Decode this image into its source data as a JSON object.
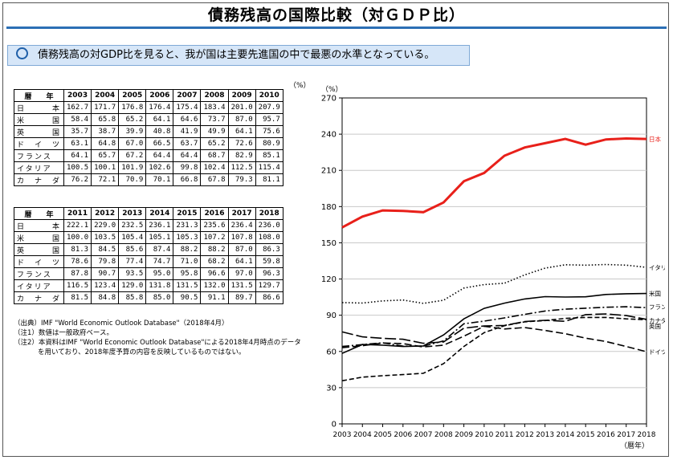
{
  "title": "債務残高の国際比較（対ＧＤＰ比）",
  "banner": "債務残高の対GDP比を見ると、我が国は主要先進国の中で最悪の水準となっている。",
  "table_unit": "（%）",
  "table_header_label": "暦　　年",
  "table1": {
    "years": [
      "2003",
      "2004",
      "2005",
      "2006",
      "2007",
      "2008",
      "2009",
      "2010"
    ],
    "rows": [
      {
        "country": "日　　　本",
        "values": [
          "162.7",
          "171.7",
          "176.8",
          "176.4",
          "175.4",
          "183.4",
          "201.0",
          "207.9"
        ]
      },
      {
        "country": "米　　　国",
        "values": [
          "58.4",
          "65.8",
          "65.2",
          "64.1",
          "64.6",
          "73.7",
          "87.0",
          "95.7"
        ]
      },
      {
        "country": "英　　　国",
        "values": [
          "35.7",
          "38.7",
          "39.9",
          "40.8",
          "41.9",
          "49.9",
          "64.1",
          "75.6"
        ]
      },
      {
        "country": "ド　イ　ツ",
        "values": [
          "63.1",
          "64.8",
          "67.0",
          "66.5",
          "63.7",
          "65.2",
          "72.6",
          "80.9"
        ]
      },
      {
        "country": "フランス",
        "values": [
          "64.1",
          "65.7",
          "67.2",
          "64.4",
          "64.4",
          "68.7",
          "82.9",
          "85.1"
        ]
      },
      {
        "country": "イタリア",
        "values": [
          "100.5",
          "100.1",
          "101.9",
          "102.6",
          "99.8",
          "102.4",
          "112.5",
          "115.4"
        ]
      },
      {
        "country": "カ　ナ　ダ",
        "values": [
          "76.2",
          "72.1",
          "70.9",
          "70.1",
          "66.8",
          "67.8",
          "79.3",
          "81.1"
        ]
      }
    ]
  },
  "table2": {
    "years": [
      "2011",
      "2012",
      "2013",
      "2014",
      "2015",
      "2016",
      "2017",
      "2018"
    ],
    "rows": [
      {
        "country": "日　　　本",
        "values": [
          "222.1",
          "229.0",
          "232.5",
          "236.1",
          "231.3",
          "235.6",
          "236.4",
          "236.0"
        ]
      },
      {
        "country": "米　　　国",
        "values": [
          "100.0",
          "103.5",
          "105.4",
          "105.1",
          "105.3",
          "107.2",
          "107.8",
          "108.0"
        ]
      },
      {
        "country": "英　　　国",
        "values": [
          "81.3",
          "84.5",
          "85.6",
          "87.4",
          "88.2",
          "88.2",
          "87.0",
          "86.3"
        ]
      },
      {
        "country": "ド　イ　ツ",
        "values": [
          "78.6",
          "79.8",
          "77.4",
          "74.7",
          "71.0",
          "68.2",
          "64.1",
          "59.8"
        ]
      },
      {
        "country": "フランス",
        "values": [
          "87.8",
          "90.7",
          "93.5",
          "95.0",
          "95.8",
          "96.6",
          "97.0",
          "96.3"
        ]
      },
      {
        "country": "イタリア",
        "values": [
          "116.5",
          "123.4",
          "129.0",
          "131.8",
          "131.5",
          "132.0",
          "131.5",
          "129.7"
        ]
      },
      {
        "country": "カ　ナ　ダ",
        "values": [
          "81.5",
          "84.8",
          "85.8",
          "85.0",
          "90.5",
          "91.1",
          "89.7",
          "86.6"
        ]
      }
    ]
  },
  "notes": {
    "source": "（出典）IMF \"World Economic Outlook Database\"（2018年4月）",
    "note1": "（注1）数値は一般政府ベース。",
    "note2a": "（注2）本資料はIMF \"World Economic Outlook Database\"による2018年4月時点のデータ",
    "note2b": "を用いており、2018年度予算の内容を反映しているものではない。"
  },
  "chart_data": {
    "type": "line",
    "yunit": "（%）",
    "xlabel": "（暦年）",
    "ylim": [
      0,
      270
    ],
    "yticks": [
      0,
      30,
      60,
      90,
      120,
      150,
      180,
      210,
      240,
      270
    ],
    "grid": true,
    "x": [
      "2003",
      "2004",
      "2005",
      "2006",
      "2007",
      "2008",
      "2009",
      "2010",
      "2011",
      "2012",
      "2013",
      "2014",
      "2015",
      "2016",
      "2017",
      "2018"
    ],
    "series": [
      {
        "name": "日本",
        "color": "#e8201a",
        "dash": "solid",
        "values": [
          162.7,
          171.7,
          176.8,
          176.4,
          175.4,
          183.4,
          201.0,
          207.9,
          222.1,
          229.0,
          232.5,
          236.1,
          231.3,
          235.6,
          236.4,
          236.0
        ]
      },
      {
        "name": "イタリア",
        "color": "#000000",
        "dash": "dotted",
        "values": [
          100.5,
          100.1,
          101.9,
          102.6,
          99.8,
          102.4,
          112.5,
          115.4,
          116.5,
          123.4,
          129.0,
          131.8,
          131.5,
          132.0,
          131.5,
          129.7
        ]
      },
      {
        "name": "米国",
        "color": "#000000",
        "dash": "solid",
        "values": [
          58.4,
          65.8,
          65.2,
          64.1,
          64.6,
          73.7,
          87.0,
          95.7,
          100.0,
          103.5,
          105.4,
          105.1,
          105.3,
          107.2,
          107.8,
          108.0
        ]
      },
      {
        "name": "フランス",
        "color": "#000000",
        "dash": "dashdot",
        "values": [
          64.1,
          65.7,
          67.2,
          64.4,
          64.4,
          68.7,
          82.9,
          85.1,
          87.8,
          90.7,
          93.5,
          95.0,
          95.8,
          96.6,
          97.0,
          96.3
        ]
      },
      {
        "name": "カナダ",
        "color": "#000000",
        "dash": "longdash",
        "values": [
          76.2,
          72.1,
          70.9,
          70.1,
          66.8,
          67.8,
          79.3,
          81.1,
          81.5,
          84.8,
          85.8,
          85.0,
          90.5,
          91.1,
          89.7,
          86.6
        ]
      },
      {
        "name": "英国",
        "color": "#000000",
        "dash": "shortdash",
        "values": [
          35.7,
          38.7,
          39.9,
          40.8,
          41.9,
          49.9,
          64.1,
          75.6,
          81.3,
          84.5,
          85.6,
          87.4,
          88.2,
          88.2,
          87.0,
          86.3
        ]
      },
      {
        "name": "ドイツ",
        "color": "#000000",
        "dash": "dashed",
        "values": [
          63.1,
          64.8,
          67.0,
          66.5,
          63.7,
          65.2,
          72.6,
          80.9,
          78.6,
          79.8,
          77.4,
          74.7,
          71.0,
          68.2,
          64.1,
          59.8
        ]
      }
    ]
  }
}
